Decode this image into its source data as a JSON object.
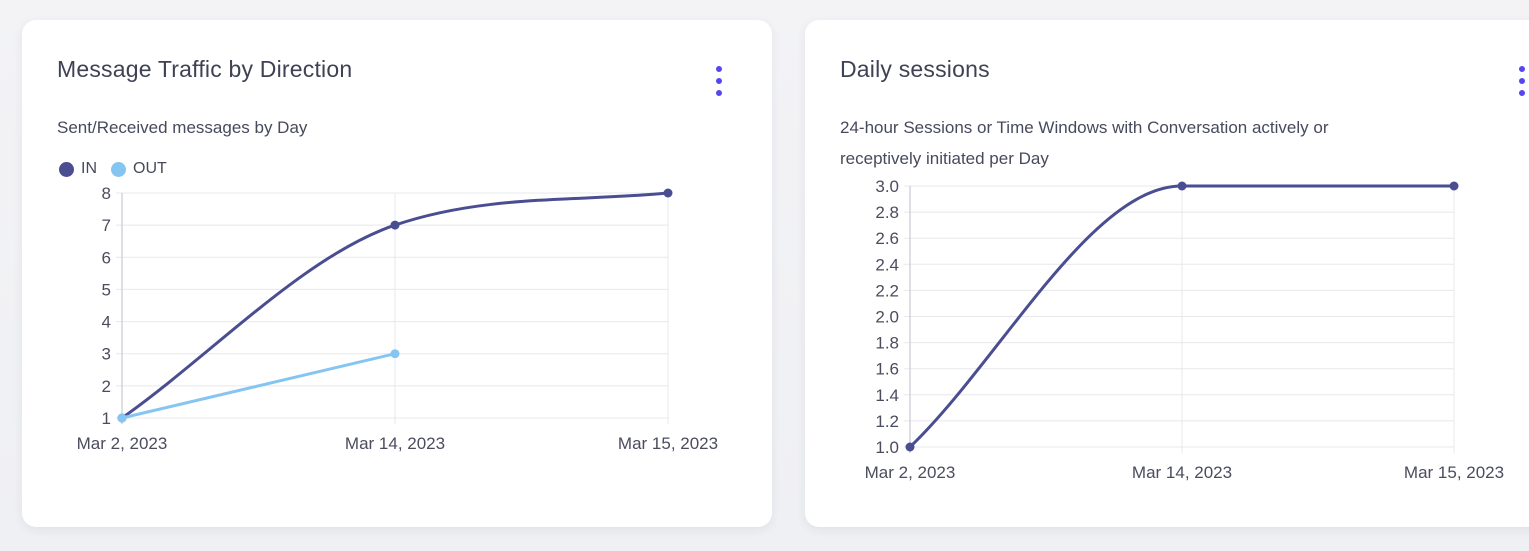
{
  "page": {
    "background": "#f1f2f4",
    "card_background": "#ffffff"
  },
  "colors": {
    "accent_menu": "#5546f0",
    "series_in": "#4a4e91",
    "series_out": "#85c5f2",
    "gridline": "#e7e8ec",
    "axis_line": "#cdced6",
    "title_text": "#3f4254",
    "tick_text": "#4b4c5e"
  },
  "cards": [
    {
      "title": "Message Traffic by Direction",
      "subtitle": "Sent/Received messages by Day",
      "menu_icon": "kebab-menu-icon"
    },
    {
      "title": "Daily sessions",
      "subtitle": "24-hour Sessions or Time Windows with Conversation actively or receptively initiated per Day",
      "menu_icon": "kebab-menu-icon"
    }
  ],
  "chart_data": [
    {
      "type": "line",
      "title": "Message Traffic by Direction",
      "subtitle": "Sent/Received messages by Day",
      "categories": [
        "Mar 2, 2023",
        "Mar 14, 2023",
        "Mar 15, 2023"
      ],
      "series": [
        {
          "name": "IN",
          "color": "#4a4e91",
          "values": [
            1,
            7,
            8
          ]
        },
        {
          "name": "OUT",
          "color": "#85c5f2",
          "values": [
            1,
            3,
            null
          ]
        }
      ],
      "ylim": [
        1,
        8
      ],
      "ytick_labels": [
        "1",
        "2",
        "3",
        "4",
        "5",
        "6",
        "7",
        "8"
      ],
      "grid": true,
      "curve": "monotone",
      "legend_position": "top-left"
    },
    {
      "type": "line",
      "title": "Daily sessions",
      "subtitle": "24-hour Sessions or Time Windows with Conversation actively or receptively initiated per Day",
      "categories": [
        "Mar 2, 2023",
        "Mar 14, 2023",
        "Mar 15, 2023"
      ],
      "series": [
        {
          "color": "#4a4e91",
          "values": [
            1.0,
            3.0,
            3.0
          ]
        }
      ],
      "ylim": [
        1.0,
        3.0
      ],
      "ytick_labels": [
        "1.0",
        "1.2",
        "1.4",
        "1.6",
        "1.8",
        "2.0",
        "2.2",
        "2.4",
        "2.6",
        "2.8",
        "3.0"
      ],
      "grid": true,
      "curve": "monotone",
      "legend_position": "none"
    }
  ]
}
